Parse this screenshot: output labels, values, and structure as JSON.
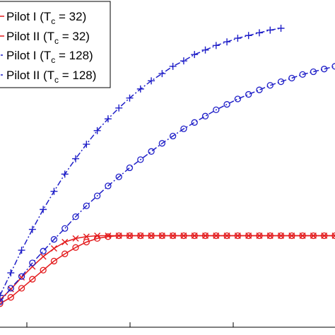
{
  "chart_data": {
    "type": "line",
    "title": "",
    "xlabel": "",
    "ylabel": "",
    "xlim": [
      0,
      31
    ],
    "ylim": [
      0,
      33
    ],
    "grid": false,
    "legend_position": "top-left",
    "legend": [
      {
        "prefix": "Pilot I (T",
        "sub": "c",
        "suffix": " = 32)"
      },
      {
        "prefix": "Pilot II (T",
        "sub": "c",
        "suffix": " = 32)"
      },
      {
        "prefix": "Pilot I (T",
        "sub": "c",
        "suffix": " = 128)"
      },
      {
        "prefix": "Pilot II (T",
        "sub": "c",
        "suffix": " = 128)"
      }
    ],
    "series": [
      {
        "color": "#e31a1c",
        "line": "solid",
        "marker": "x",
        "points": [
          [
            0,
            3
          ],
          [
            1,
            4.2
          ],
          [
            2,
            5.5
          ],
          [
            3,
            6.7
          ],
          [
            4,
            7.8
          ],
          [
            5,
            8.7
          ],
          [
            6,
            9.4
          ],
          [
            7,
            9.8
          ],
          [
            8,
            10.0
          ],
          [
            9,
            10.1
          ],
          [
            10,
            10.1
          ],
          [
            11,
            10.1
          ],
          [
            12,
            10.1
          ],
          [
            13,
            10.1
          ],
          [
            14,
            10.1
          ],
          [
            15,
            10.1
          ],
          [
            16,
            10.1
          ],
          [
            17,
            10.1
          ],
          [
            18,
            10.1
          ],
          [
            19,
            10.1
          ],
          [
            20,
            10.1
          ],
          [
            21,
            10.1
          ],
          [
            22,
            10.1
          ],
          [
            23,
            10.1
          ],
          [
            24,
            10.1
          ],
          [
            25,
            10.1
          ],
          [
            26,
            10.1
          ],
          [
            27,
            10.1
          ],
          [
            28,
            10.1
          ],
          [
            29,
            10.1
          ],
          [
            30,
            10.1
          ],
          [
            31,
            10.1
          ]
        ]
      },
      {
        "color": "#e31a1c",
        "line": "solid",
        "marker": "o",
        "points": [
          [
            0,
            2.6
          ],
          [
            1,
            3.3
          ],
          [
            2,
            4.3
          ],
          [
            3,
            5.3
          ],
          [
            4,
            6.3
          ],
          [
            5,
            7.3
          ],
          [
            6,
            8.1
          ],
          [
            7,
            8.8
          ],
          [
            8,
            9.4
          ],
          [
            9,
            9.8
          ],
          [
            10,
            10.0
          ],
          [
            11,
            10.1
          ],
          [
            12,
            10.1
          ],
          [
            13,
            10.1
          ],
          [
            14,
            10.1
          ],
          [
            15,
            10.1
          ],
          [
            16,
            10.1
          ],
          [
            17,
            10.1
          ],
          [
            18,
            10.1
          ],
          [
            19,
            10.1
          ],
          [
            20,
            10.1
          ],
          [
            21,
            10.1
          ],
          [
            22,
            10.1
          ],
          [
            23,
            10.1
          ],
          [
            24,
            10.1
          ],
          [
            25,
            10.1
          ],
          [
            26,
            10.1
          ],
          [
            27,
            10.1
          ],
          [
            28,
            10.1
          ],
          [
            29,
            10.1
          ],
          [
            30,
            10.1
          ],
          [
            31,
            10.1
          ]
        ]
      },
      {
        "color": "#1f1fc8",
        "line": "dashdot",
        "marker": "+",
        "points": [
          [
            0,
            3.5
          ],
          [
            1,
            6.0
          ],
          [
            2,
            8.5
          ],
          [
            3,
            10.8
          ],
          [
            4,
            13.0
          ],
          [
            5,
            15.0
          ],
          [
            6,
            16.9
          ],
          [
            7,
            18.6
          ],
          [
            8,
            20.2
          ],
          [
            9,
            21.7
          ],
          [
            10,
            23.0
          ],
          [
            11,
            24.2
          ],
          [
            12,
            25.3
          ],
          [
            13,
            26.3
          ],
          [
            14,
            27.2
          ],
          [
            15,
            28.0
          ],
          [
            16,
            28.8
          ],
          [
            17,
            29.4
          ],
          [
            18,
            30.1
          ],
          [
            19,
            30.6
          ],
          [
            20,
            31.1
          ],
          [
            21,
            31.5
          ],
          [
            22,
            31.9
          ],
          [
            23,
            32.2
          ],
          [
            24,
            32.5
          ],
          [
            25,
            32.8
          ],
          [
            26,
            33.0
          ]
        ]
      },
      {
        "color": "#1f1fc8",
        "line": "dashdot",
        "marker": "o",
        "points": [
          [
            0,
            2.8
          ],
          [
            1,
            4.3
          ],
          [
            2,
            5.6
          ],
          [
            3,
            7.1
          ],
          [
            4,
            8.4
          ],
          [
            5,
            9.7
          ],
          [
            6,
            10.9
          ],
          [
            7,
            12.2
          ],
          [
            8,
            13.4
          ],
          [
            9,
            14.5
          ],
          [
            10,
            15.6
          ],
          [
            11,
            16.6
          ],
          [
            12,
            17.6
          ],
          [
            13,
            18.5
          ],
          [
            14,
            19.4
          ],
          [
            15,
            20.3
          ],
          [
            16,
            21.1
          ],
          [
            17,
            21.9
          ],
          [
            18,
            22.6
          ],
          [
            19,
            23.3
          ],
          [
            20,
            24.0
          ],
          [
            21,
            24.6
          ],
          [
            22,
            25.2
          ],
          [
            23,
            25.7
          ],
          [
            24,
            26.2
          ],
          [
            25,
            26.7
          ],
          [
            26,
            27.1
          ],
          [
            27,
            27.5
          ],
          [
            28,
            27.9
          ],
          [
            29,
            28.2
          ],
          [
            30,
            28.5
          ],
          [
            31,
            28.8
          ]
        ]
      }
    ]
  }
}
